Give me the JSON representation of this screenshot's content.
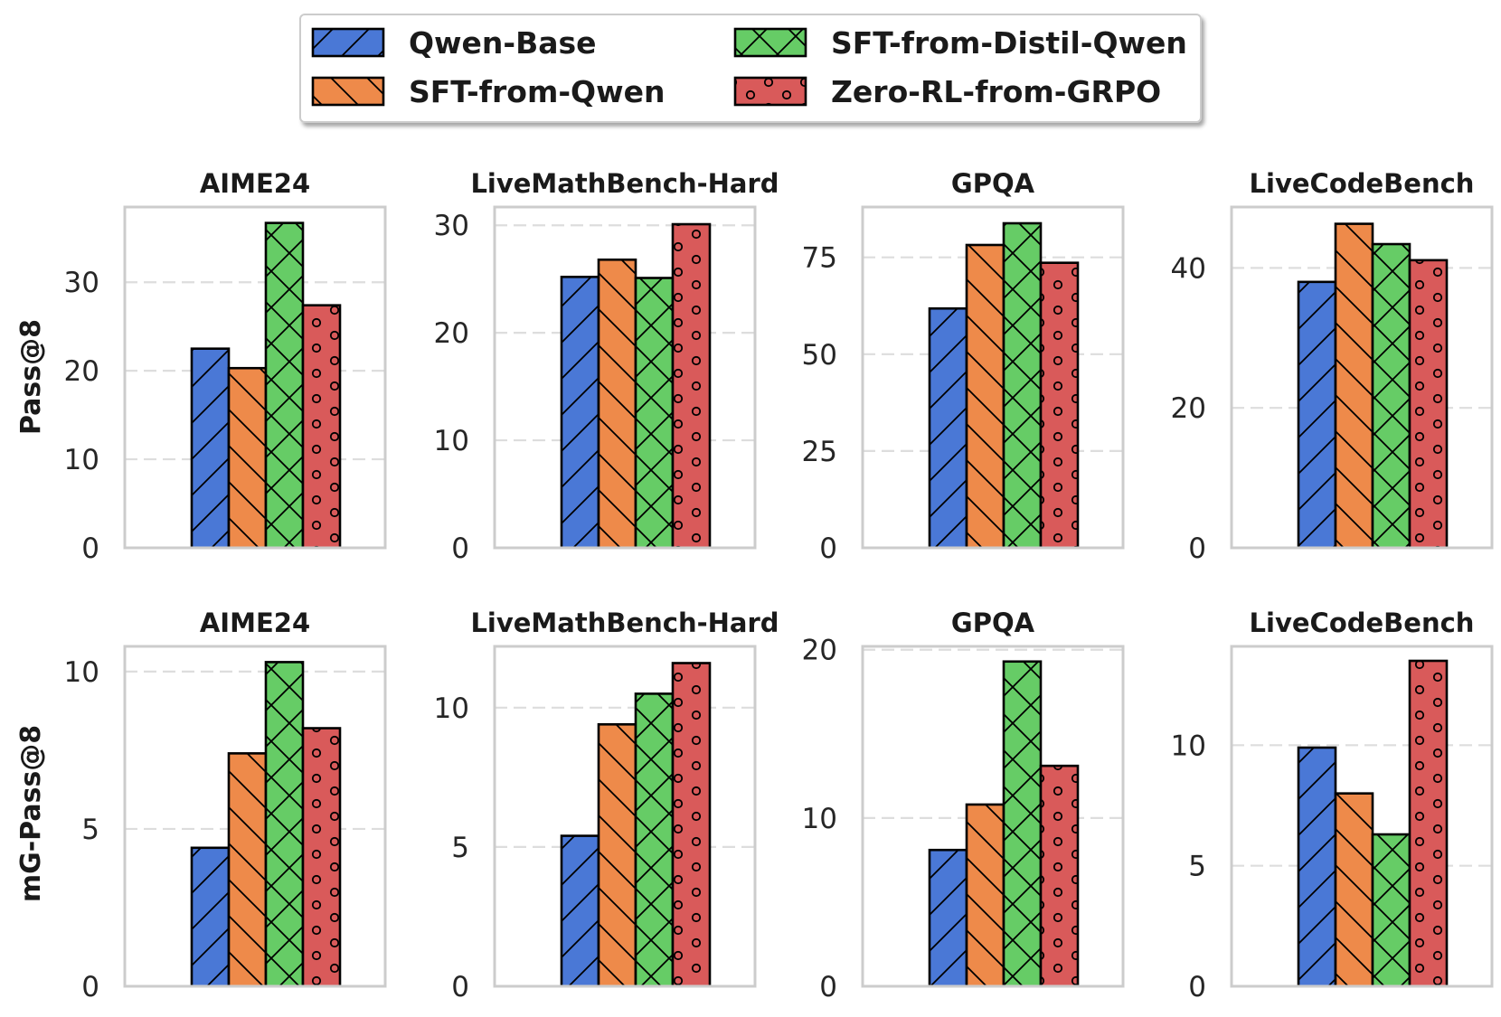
{
  "chart_data": {
    "type": "bar",
    "legend": {
      "placement": "top-center",
      "entries": [
        {
          "name": "Qwen-Base",
          "color": "#4a78d6",
          "hatch": "diag-fwd"
        },
        {
          "name": "SFT-from-Distil-Qwen",
          "color": "#66cc66",
          "hatch": "cross"
        },
        {
          "name": "SFT-from-Qwen",
          "color": "#ee8a4a",
          "hatch": "diag-back"
        },
        {
          "name": "Zero-RL-from-GRPO",
          "color": "#d95a5a",
          "hatch": "circles"
        }
      ]
    },
    "series_names": [
      "Qwen-Base",
      "SFT-from-Qwen",
      "SFT-from-Distil-Qwen",
      "Zero-RL-from-GRPO"
    ],
    "rows": [
      {
        "ylabel": "Pass@8",
        "panels": [
          {
            "title": "AIME24",
            "ylim": [
              0,
              38.5
            ],
            "yticks": [
              0,
              10,
              20,
              30
            ],
            "grid": true,
            "values": [
              22.5,
              20.3,
              36.7,
              27.4
            ]
          },
          {
            "title": "LiveMathBench-Hard",
            "ylim": [
              0,
              31.7
            ],
            "yticks": [
              0,
              10,
              20,
              30
            ],
            "grid": true,
            "values": [
              25.2,
              26.8,
              25.1,
              30.1
            ]
          },
          {
            "title": "GPQA",
            "ylim": [
              0,
              88
            ],
            "yticks": [
              0,
              25,
              50,
              75
            ],
            "grid": true,
            "values": [
              61.8,
              78.2,
              83.8,
              73.6
            ]
          },
          {
            "title": "LiveCodeBench",
            "ylim": [
              0,
              48.7
            ],
            "yticks": [
              0,
              20,
              40
            ],
            "grid": true,
            "values": [
              38.0,
              46.3,
              43.4,
              41.1
            ]
          }
        ]
      },
      {
        "ylabel": "mG-Pass@8",
        "panels": [
          {
            "title": "AIME24",
            "ylim": [
              0,
              10.8
            ],
            "yticks": [
              0,
              5,
              10
            ],
            "grid": true,
            "values": [
              4.4,
              7.4,
              10.3,
              8.2
            ]
          },
          {
            "title": "LiveMathBench-Hard",
            "ylim": [
              0,
              12.2
            ],
            "yticks": [
              0,
              5,
              10
            ],
            "grid": true,
            "values": [
              5.4,
              9.4,
              10.5,
              11.6
            ]
          },
          {
            "title": "GPQA",
            "ylim": [
              0,
              20.2
            ],
            "yticks": [
              0,
              10,
              20
            ],
            "grid": true,
            "values": [
              8.1,
              10.8,
              19.3,
              13.1
            ]
          },
          {
            "title": "LiveCodeBench",
            "ylim": [
              0,
              14.1
            ],
            "yticks": [
              0,
              5,
              10
            ],
            "grid": true,
            "values": [
              9.9,
              8.0,
              6.3,
              13.5
            ]
          }
        ]
      }
    ]
  }
}
